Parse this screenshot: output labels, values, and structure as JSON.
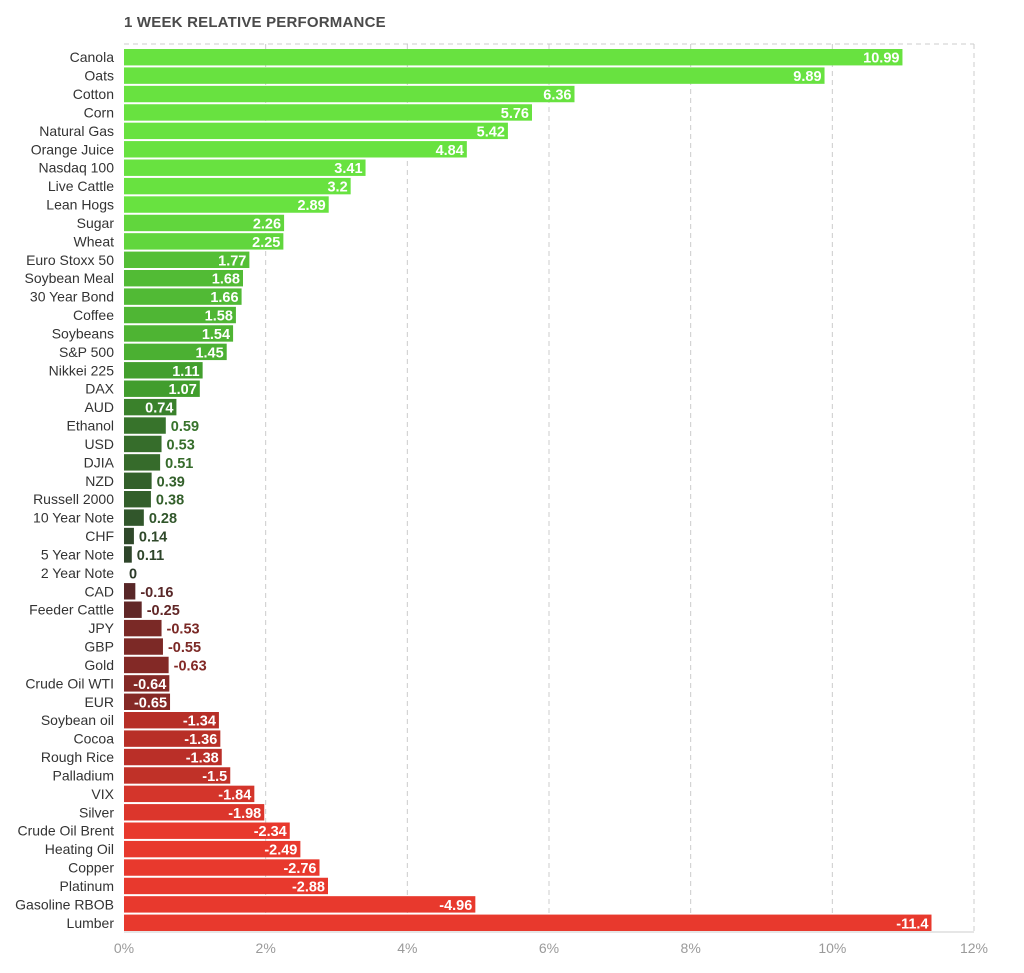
{
  "chart_data": {
    "type": "bar",
    "orientation": "horizontal",
    "title": "1 WEEK RELATIVE PERFORMANCE",
    "xlim": [
      0,
      12
    ],
    "x_ticks": [
      "0%",
      "2%",
      "4%",
      "6%",
      "8%",
      "10%",
      "12%"
    ],
    "x_tick_values": [
      0,
      2,
      4,
      6,
      8,
      10,
      12
    ],
    "grid": "vertical-dashed",
    "bar_length": "absolute value",
    "color_scale": {
      "strong_positive": "#68e240",
      "mid_positive": "#3f9a2c",
      "weak_positive": "#2c3b2a",
      "weak_negative": "#4a2628",
      "mid_negative": "#a42b25",
      "strong_negative": "#e8392d"
    },
    "categories": [
      "Canola",
      "Oats",
      "Cotton",
      "Corn",
      "Natural Gas",
      "Orange Juice",
      "Nasdaq 100",
      "Live Cattle",
      "Lean Hogs",
      "Sugar",
      "Wheat",
      "Euro Stoxx 50",
      "Soybean Meal",
      "30 Year Bond",
      "Coffee",
      "Soybeans",
      "S&P 500",
      "Nikkei 225",
      "DAX",
      "AUD",
      "Ethanol",
      "USD",
      "DJIA",
      "NZD",
      "Russell 2000",
      "10 Year Note",
      "CHF",
      "5 Year Note",
      "2 Year Note",
      "CAD",
      "Feeder Cattle",
      "JPY",
      "GBP",
      "Gold",
      "Crude Oil WTI",
      "EUR",
      "Soybean oil",
      "Cocoa",
      "Rough Rice",
      "Palladium",
      "VIX",
      "Silver",
      "Crude Oil Brent",
      "Heating Oil",
      "Copper",
      "Platinum",
      "Gasoline RBOB",
      "Lumber"
    ],
    "values": [
      10.99,
      9.89,
      6.36,
      5.76,
      5.42,
      4.84,
      3.41,
      3.2,
      2.89,
      2.26,
      2.25,
      1.77,
      1.68,
      1.66,
      1.58,
      1.54,
      1.45,
      1.11,
      1.07,
      0.74,
      0.59,
      0.53,
      0.51,
      0.39,
      0.38,
      0.28,
      0.14,
      0.11,
      0,
      -0.16,
      -0.25,
      -0.53,
      -0.55,
      -0.63,
      -0.64,
      -0.65,
      -1.34,
      -1.36,
      -1.38,
      -1.5,
      -1.84,
      -1.98,
      -2.34,
      -2.49,
      -2.76,
      -2.88,
      -4.96,
      -11.4
    ],
    "value_labels": [
      "10.99",
      "9.89",
      "6.36",
      "5.76",
      "5.42",
      "4.84",
      "3.41",
      "3.2",
      "2.89",
      "2.26",
      "2.25",
      "1.77",
      "1.68",
      "1.66",
      "1.58",
      "1.54",
      "1.45",
      "1.11",
      "1.07",
      "0.74",
      "0.59",
      "0.53",
      "0.51",
      "0.39",
      "0.38",
      "0.28",
      "0.14",
      "0.11",
      "0",
      "-0.16",
      "-0.25",
      "-0.53",
      "-0.55",
      "-0.63",
      "-0.64",
      "-0.65",
      "-1.34",
      "-1.36",
      "-1.38",
      "-1.5",
      "-1.84",
      "-1.98",
      "-2.34",
      "-2.49",
      "-2.76",
      "-2.88",
      "-4.96",
      "-11.4"
    ]
  }
}
